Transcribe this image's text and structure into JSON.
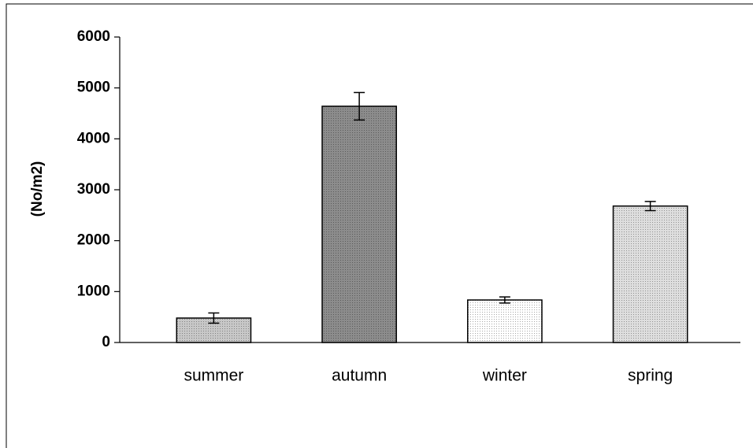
{
  "chart_data": {
    "type": "bar",
    "y_label": "(No/m2)",
    "categories": [
      "summer",
      "autumn",
      "winter",
      "spring"
    ],
    "values": [
      480,
      4640,
      835,
      2680
    ],
    "errors": [
      100,
      270,
      60,
      90
    ],
    "colors": [
      "#c8c8c8",
      "#8c8c8c",
      "#ffffff",
      "#dedede"
    ],
    "ylim": [
      0,
      6000
    ],
    "yticks": [
      0,
      1000,
      2000,
      3000,
      4000,
      5000,
      6000
    ],
    "grid": false
  }
}
